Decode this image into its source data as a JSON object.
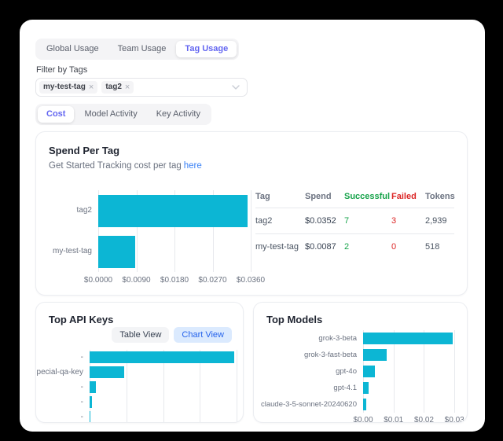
{
  "theme": {
    "accent": "#6366f1",
    "bar_color": "#0cb6d4",
    "link_color": "#3b82f6",
    "success_color": "#16a34a",
    "fail_color": "#dc2626"
  },
  "tabs_primary": {
    "items": [
      {
        "label": "Global Usage",
        "active": false
      },
      {
        "label": "Team Usage",
        "active": false
      },
      {
        "label": "Tag Usage",
        "active": true
      }
    ]
  },
  "filter": {
    "label": "Filter by Tags",
    "remove_icon": "×",
    "tags": [
      {
        "name": "my-test-tag"
      },
      {
        "name": "tag2"
      }
    ]
  },
  "tabs_secondary": {
    "items": [
      {
        "label": "Cost",
        "active": true
      },
      {
        "label": "Model Activity",
        "active": false
      },
      {
        "label": "Key Activity",
        "active": false
      }
    ]
  },
  "spend_card": {
    "title": "Spend Per Tag",
    "subtitle_text": "Get Started Tracking cost per tag",
    "subtitle_link": "here",
    "table": {
      "headers": [
        "Tag",
        "Spend",
        "Successful",
        "Failed",
        "Tokens"
      ],
      "rows": [
        {
          "tag": "tag2",
          "spend": "$0.0352",
          "successful": "7",
          "failed": "3",
          "tokens": "2,939"
        },
        {
          "tag": "my-test-tag",
          "spend": "$0.0087",
          "successful": "2",
          "failed": "0",
          "tokens": "518"
        }
      ]
    }
  },
  "api_keys_card": {
    "title": "Top API Keys",
    "view_buttons": [
      {
        "label": "Table View",
        "active": false
      },
      {
        "label": "Chart View",
        "active": true
      }
    ]
  },
  "models_card": {
    "title": "Top Models"
  },
  "chart_data": [
    {
      "id": "spend_per_tag",
      "type": "bar",
      "orientation": "horizontal",
      "title": "Spend Per Tag",
      "categories": [
        "tag2",
        "my-test-tag"
      ],
      "values": [
        0.0352,
        0.0087
      ],
      "x_tick_labels": [
        "$0.0000",
        "$0.0090",
        "$0.0180",
        "$0.0270",
        "$0.0360"
      ],
      "x_tick_values": [
        0,
        0.009,
        0.018,
        0.027,
        0.036
      ],
      "xlim": [
        0,
        0.036
      ],
      "grid": true,
      "legend": false
    },
    {
      "id": "top_api_keys",
      "type": "bar",
      "orientation": "horizontal",
      "title": "Top API Keys",
      "categories": [
        "-",
        "pecial-qa-key",
        "-",
        "-",
        "-"
      ],
      "values": [
        0.0295,
        0.0071,
        0.0013,
        0.0005,
        5e-05
      ],
      "x_tick_labels": null,
      "x_tick_values": null,
      "grid_values": [
        0,
        0.0075,
        0.015,
        0.0225,
        0.03
      ],
      "xlim": [
        0,
        0.03
      ],
      "grid": true,
      "legend": false,
      "note": "x axis labels clipped by card bottom"
    },
    {
      "id": "top_models",
      "type": "bar",
      "orientation": "horizontal",
      "title": "Top Models",
      "categories": [
        "grok-3-beta",
        "grok-3-fast-beta",
        "gpt-4o",
        "gpt-4.1",
        "claude-3-5-sonnet-20240620"
      ],
      "values": [
        0.0295,
        0.0078,
        0.0039,
        0.0018,
        0.001
      ],
      "x_tick_labels": [
        "$0.00",
        "$0.01",
        "$0.02",
        "$0.03"
      ],
      "x_tick_values": [
        0,
        0.01,
        0.02,
        0.03
      ],
      "xlim": [
        0,
        0.0315
      ],
      "grid": true,
      "legend": false
    }
  ]
}
